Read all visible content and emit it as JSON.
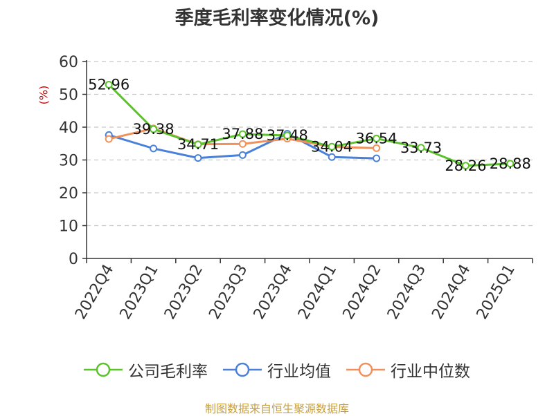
{
  "chart_data": {
    "type": "line",
    "title": "季度毛利率变化情况(%)",
    "ylabel": "(%)",
    "xlabel": "",
    "ylim": [
      0,
      60
    ],
    "yticks": [
      0,
      10,
      20,
      30,
      40,
      50,
      60
    ],
    "grid": true,
    "legend_position": "bottom",
    "categories": [
      "2022Q4",
      "2023Q1",
      "2023Q2",
      "2023Q3",
      "2023Q4",
      "2024Q1",
      "2024Q2",
      "2024Q3",
      "2024Q4",
      "2025Q1"
    ],
    "series": [
      {
        "name": "公司毛利率",
        "color": "#5cc22c",
        "values": [
          52.96,
          39.38,
          34.71,
          37.88,
          37.48,
          34.04,
          36.54,
          33.73,
          28.26,
          28.88
        ],
        "labels": [
          "52.96",
          "39.38",
          "34.71",
          "37.88",
          "37.48",
          "34.04",
          "36.54",
          "33.73",
          "28.26",
          "28.88"
        ]
      },
      {
        "name": "行业均值",
        "color": "#4a80d8",
        "values": [
          37.6,
          33.5,
          30.6,
          31.5,
          38.0,
          30.9,
          30.5,
          null,
          null,
          null
        ]
      },
      {
        "name": "行业中位数",
        "color": "#f0905a",
        "values": [
          36.4,
          39.6,
          34.8,
          34.9,
          36.5,
          34.0,
          33.6,
          null,
          null,
          null
        ]
      }
    ]
  },
  "source": "制图数据来自恒生聚源数据库"
}
